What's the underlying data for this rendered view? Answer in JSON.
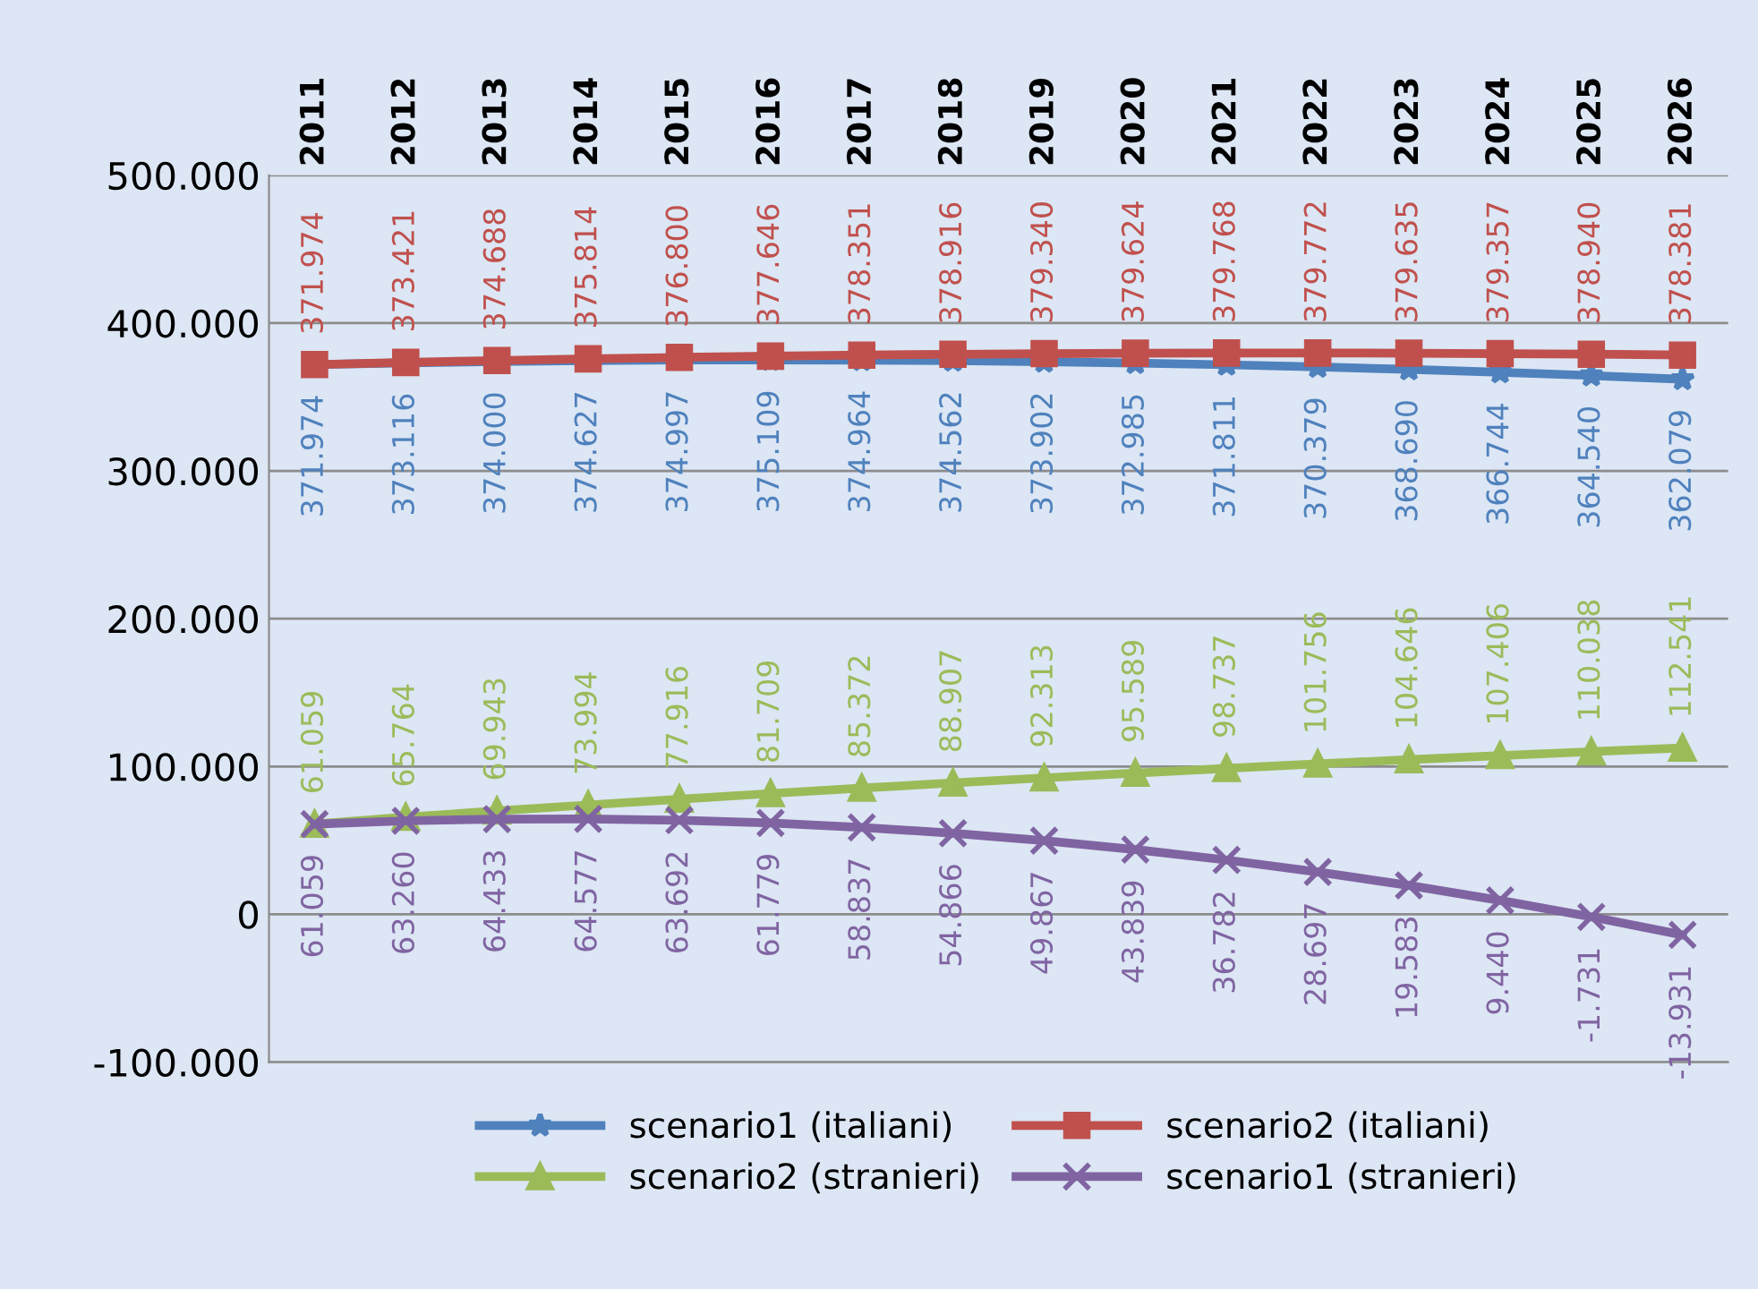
{
  "chart_data": {
    "type": "line",
    "categories": [
      "2011",
      "2012",
      "2013",
      "2014",
      "2015",
      "2016",
      "2017",
      "2018",
      "2019",
      "2020",
      "2021",
      "2022",
      "2023",
      "2024",
      "2025",
      "2026"
    ],
    "ylim": [
      -100000,
      500000
    ],
    "yticks": [
      {
        "value": -100000,
        "label": "-100.000"
      },
      {
        "value": 0,
        "label": "0"
      },
      {
        "value": 100000,
        "label": "100.000"
      },
      {
        "value": 200000,
        "label": "200.000"
      },
      {
        "value": 300000,
        "label": "300.000"
      },
      {
        "value": 400000,
        "label": "400.000"
      },
      {
        "value": 500000,
        "label": "500.000"
      }
    ],
    "grid": "y",
    "legend": "bottom",
    "series": [
      {
        "name": "scenario1 (italiani)",
        "color": "#4f81bd",
        "marker": "star",
        "values": [
          371974,
          373116,
          374000,
          374627,
          374997,
          375109,
          374964,
          374562,
          373902,
          372985,
          371811,
          370379,
          368690,
          366744,
          364540,
          362079
        ],
        "value_labels": [
          "371.974",
          "373.116",
          "374.000",
          "374.627",
          "374.997",
          "375.109",
          "374.964",
          "374.562",
          "373.902",
          "372.985",
          "371.811",
          "370.379",
          "368.690",
          "366.744",
          "364.540",
          "362.079"
        ]
      },
      {
        "name": "scenario2 (italiani)",
        "color": "#c0504d",
        "marker": "square",
        "values": [
          371974,
          373421,
          374688,
          375814,
          376800,
          377646,
          378351,
          378916,
          379340,
          379624,
          379768,
          379772,
          379635,
          379357,
          378940,
          378381
        ],
        "value_labels": [
          "371.974",
          "373.421",
          "374.688",
          "375.814",
          "376.800",
          "377.646",
          "378.351",
          "378.916",
          "379.340",
          "379.624",
          "379.768",
          "379.772",
          "379.635",
          "379.357",
          "378.940",
          "378.381"
        ]
      },
      {
        "name": "scenario2 (stranieri)",
        "color": "#9bbb59",
        "marker": "triangle",
        "values": [
          61059,
          65764,
          69943,
          73994,
          77916,
          81709,
          85372,
          88907,
          92313,
          95589,
          98737,
          101756,
          104646,
          107406,
          110038,
          112541
        ],
        "value_labels": [
          "61.059",
          "65.764",
          "69.943",
          "73.994",
          "77.916",
          "81.709",
          "85.372",
          "88.907",
          "92.313",
          "95.589",
          "98.737",
          "101.756",
          "104.646",
          "107.406",
          "110.038",
          "112.541"
        ]
      },
      {
        "name": "scenario1 (stranieri)",
        "color": "#8064a2",
        "marker": "cross",
        "values": [
          61059,
          63260,
          64433,
          64577,
          63692,
          61779,
          58837,
          54866,
          49867,
          43839,
          36782,
          28697,
          19583,
          9440,
          -1731,
          -13931
        ],
        "value_labels": [
          "61.059",
          "63.260",
          "64.433",
          "64.577",
          "63.692",
          "61.779",
          "58.837",
          "54.866",
          "49.867",
          "43.839",
          "36.782",
          "28.697",
          "19.583",
          "9.440",
          "-1.731",
          "-13.931"
        ]
      }
    ]
  }
}
